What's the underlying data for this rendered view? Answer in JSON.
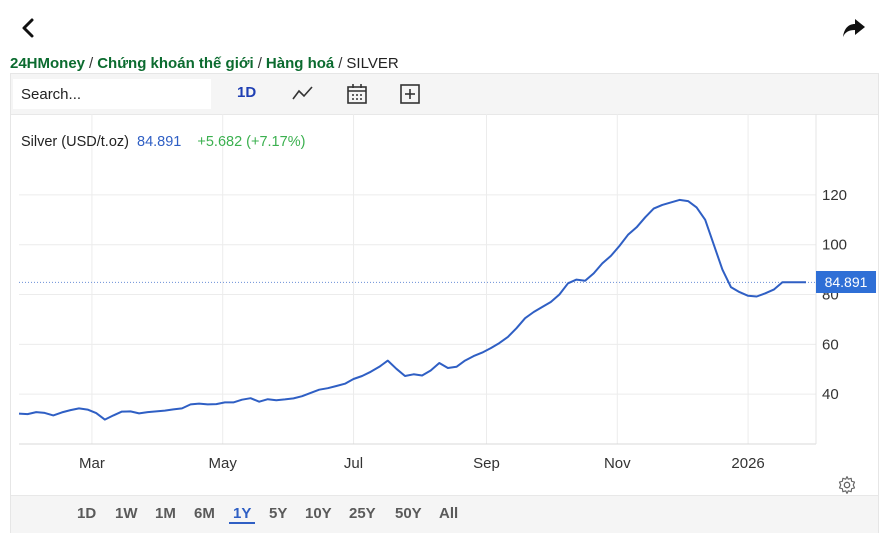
{
  "breadcrumb": {
    "items": [
      "24HMoney",
      "Chứng khoán thế giới",
      "Hàng hoá"
    ],
    "current": "SILVER"
  },
  "toolbar": {
    "search_placeholder": "Search...",
    "interval": "1D",
    "icons": [
      "chart-type-icon",
      "calendar-icon",
      "add-indicator-icon"
    ]
  },
  "legend": {
    "name": "Silver (USD/t.oz)",
    "value": "84.891",
    "change": "+5.682 (+7.17%)"
  },
  "price_tag": "84.891",
  "ranges": {
    "items": [
      "1D",
      "1W",
      "1M",
      "6M",
      "1Y",
      "5Y",
      "10Y",
      "25Y",
      "50Y",
      "All"
    ],
    "active": "1Y"
  },
  "colors": {
    "line": "#2f5fc4",
    "brand_green": "#0b6b2f",
    "positive": "#3bb04f",
    "price_tag": "#2f6fd6"
  },
  "chart_data": {
    "type": "line",
    "series": [
      {
        "name": "Silver (USD/t.oz)",
        "x": [
          0,
          4,
          8,
          12,
          16,
          20,
          24,
          28,
          32,
          36,
          40,
          44,
          48,
          52,
          56,
          60,
          64,
          68,
          72,
          76,
          80,
          84,
          88,
          92,
          96,
          100,
          104,
          108,
          112,
          116,
          120,
          124,
          128,
          132,
          136,
          140,
          144,
          148,
          152,
          156,
          160,
          164,
          168,
          172,
          176,
          180,
          184,
          188,
          192,
          196,
          200,
          204,
          208,
          212,
          216,
          220,
          224,
          228,
          232,
          236,
          240,
          244,
          248,
          252,
          256,
          260,
          264,
          268,
          272,
          276,
          280,
          284,
          288,
          292,
          296,
          300,
          304,
          308,
          312,
          316,
          320,
          324,
          328,
          332,
          336,
          340,
          344,
          348,
          352,
          356,
          360,
          361,
          362,
          363,
          364,
          365,
          366,
          367
        ],
        "y": [
          32.2,
          32.0,
          32.8,
          32.5,
          31.5,
          32.7,
          33.6,
          34.3,
          33.8,
          32.4,
          29.8,
          31.5,
          33.0,
          33.1,
          32.3,
          32.8,
          33.1,
          33.4,
          33.9,
          34.3,
          35.9,
          36.2,
          35.9,
          36.0,
          36.7,
          36.7,
          37.8,
          38.4,
          37.0,
          38.0,
          37.6,
          37.9,
          38.3,
          39.2,
          40.5,
          41.8,
          42.4,
          43.3,
          44.2,
          46.1,
          47.3,
          49.0,
          51.0,
          53.5,
          50.2,
          47.3,
          48.0,
          47.5,
          49.5,
          52.5,
          50.5,
          51.0,
          53.5,
          55.3,
          56.7,
          58.5,
          60.5,
          63.0,
          66.5,
          70.5,
          73.0,
          75.0,
          77.0,
          80.0,
          84.5,
          86.0,
          85.5,
          88.5,
          92.5,
          95.5,
          99.5,
          104.0,
          107.0,
          111.0,
          114.5,
          116.0,
          117.0,
          118.0,
          117.5,
          115.0,
          110.0,
          100.0,
          90.0,
          83.0,
          81.0,
          79.5,
          79.2,
          80.5,
          82.0,
          84.9,
          84.9,
          84.9,
          84.9,
          84.9,
          84.9,
          84.9,
          84.9,
          84.9
        ]
      }
    ],
    "x_ticks": [
      {
        "x": 34,
        "label": "Mar"
      },
      {
        "x": 95,
        "label": "May"
      },
      {
        "x": 156,
        "label": "Jul"
      },
      {
        "x": 218,
        "label": "Sep"
      },
      {
        "x": 279,
        "label": "Nov"
      },
      {
        "x": 340,
        "label": "2026"
      }
    ],
    "y_ticks": [
      40,
      60,
      80,
      100,
      120
    ],
    "ylim": [
      20,
      130
    ],
    "xlim": [
      0,
      367
    ],
    "last_value": 84.891,
    "grid": true
  }
}
